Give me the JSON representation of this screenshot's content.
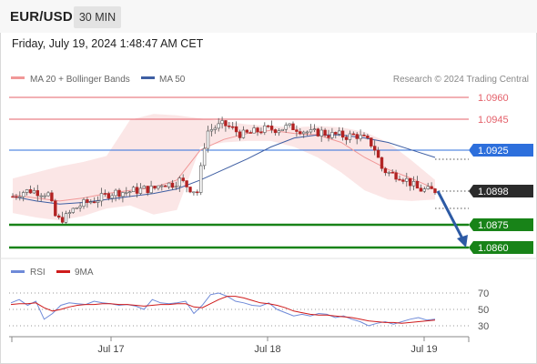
{
  "header": {
    "pair": "EUR/USD",
    "timeframe": "30 MIN"
  },
  "date_label": "Friday, July 19, 2024 1:48:47 AM CET",
  "legend": {
    "ma20": "MA 20 + Bollinger Bands",
    "ma50": "MA 50",
    "copyright": "Research © 2024 Trading Central"
  },
  "rsi_legend": {
    "rsi": "RSI",
    "ma9": "9MA"
  },
  "colors": {
    "resistance": "#e4606a",
    "pivot": "#2d6fdc",
    "support": "#188318",
    "price_label": "#2b2b2b",
    "ma20": "#f19898",
    "ma50": "#3f5fa3",
    "rsi": "#6f8ad8",
    "rsi_ma": "#cf1b1b",
    "arrow": "#2d5aa4"
  },
  "levels": [
    {
      "value": "1.0960",
      "kind": "resistance"
    },
    {
      "value": "1.0945",
      "kind": "resistance"
    },
    {
      "value": "1.0925",
      "kind": "pivot"
    },
    {
      "value": "1.0898",
      "kind": "last"
    },
    {
      "value": "1.0875",
      "kind": "support"
    },
    {
      "value": "1.0860",
      "kind": "support"
    }
  ],
  "chart_data": [
    {
      "type": "candlestick",
      "title": "EUR/USD 30 MIN",
      "x_tick_labels": [
        "Jul 17",
        "Jul 18",
        "Jul 19"
      ],
      "ylim": [
        1.0852,
        1.0969
      ],
      "close_approx": [
        1.0894,
        1.0897,
        1.0898,
        1.0897,
        1.0896,
        1.0878,
        1.088,
        1.0886,
        1.0889,
        1.0891,
        1.0893,
        1.0896,
        1.0897,
        1.0897,
        1.0898,
        1.0899,
        1.0899,
        1.0903,
        1.0902,
        1.0905,
        1.09,
        1.0897,
        1.0937,
        1.094,
        1.0942,
        1.0939,
        1.0935,
        1.0936,
        1.0938,
        1.0939,
        1.0939,
        1.094,
        1.094,
        1.0938,
        1.0936,
        1.0937,
        1.0935,
        1.0935,
        1.0934,
        1.0935,
        1.0932,
        1.0928,
        1.0912,
        1.0909,
        1.0908,
        1.0904,
        1.0899,
        1.0898,
        1.0898
      ],
      "bollinger_band_upper": [
        1.0906,
        1.091,
        1.0914,
        1.0917,
        1.0921,
        1.0945,
        1.0949,
        1.0948,
        1.0946,
        1.0944,
        1.0942,
        1.0941,
        1.094,
        1.0941,
        1.094,
        1.0937,
        1.093,
        1.0918,
        1.0905
      ],
      "bollinger_band_lower": [
        1.0883,
        1.088,
        1.0878,
        1.0881,
        1.0886,
        1.0888,
        1.0882,
        1.0885,
        1.0927,
        1.093,
        1.0931,
        1.0931,
        1.0927,
        1.092,
        1.091,
        1.0898,
        1.0892,
        1.0891,
        1.0892
      ],
      "ma20": [
        1.0895,
        1.0893,
        1.0891,
        1.0893,
        1.0896,
        1.0898,
        1.09,
        1.0905,
        1.0925,
        1.0932,
        1.0936,
        1.0938,
        1.0936,
        1.0935,
        1.093,
        1.092,
        1.0912,
        1.0906,
        1.0899
      ],
      "ma50": [
        1.0894,
        1.0891,
        1.0889,
        1.089,
        1.0892,
        1.0894,
        1.0896,
        1.0899,
        1.0905,
        1.0912,
        1.0919,
        1.0927,
        1.0933,
        1.0935,
        1.0935,
        1.0933,
        1.093,
        1.0925,
        1.092
      ],
      "forecast": {
        "from": 1.0898,
        "to": 1.086
      },
      "levels": [
        1.096,
        1.0945,
        1.0925,
        1.0898,
        1.0875,
        1.086
      ]
    },
    {
      "type": "line",
      "title": "RSI",
      "y_tick_labels": [
        "70",
        "50",
        "30"
      ],
      "ylim": [
        18,
        85
      ],
      "series": [
        {
          "name": "RSI",
          "values": [
            58,
            62,
            55,
            60,
            38,
            45,
            55,
            58,
            57,
            56,
            60,
            58,
            57,
            55,
            56,
            54,
            50,
            62,
            58,
            57,
            58,
            60,
            45,
            55,
            68,
            70,
            66,
            60,
            58,
            55,
            54,
            58,
            50,
            46,
            42,
            44,
            42,
            45,
            44,
            40,
            42,
            38,
            35,
            30,
            33,
            35,
            32,
            35,
            38,
            40,
            37,
            38
          ]
        },
        {
          "name": "9MA",
          "values": [
            56,
            57,
            57,
            58,
            52,
            48,
            50,
            53,
            55,
            56,
            56,
            57,
            57,
            56,
            56,
            55,
            54,
            55,
            56,
            56,
            57,
            57,
            53,
            52,
            57,
            62,
            66,
            66,
            64,
            61,
            58,
            57,
            55,
            52,
            48,
            46,
            44,
            43,
            43,
            42,
            41,
            40,
            38,
            36,
            35,
            34,
            34,
            33,
            34,
            35,
            36,
            37
          ]
        }
      ]
    }
  ]
}
